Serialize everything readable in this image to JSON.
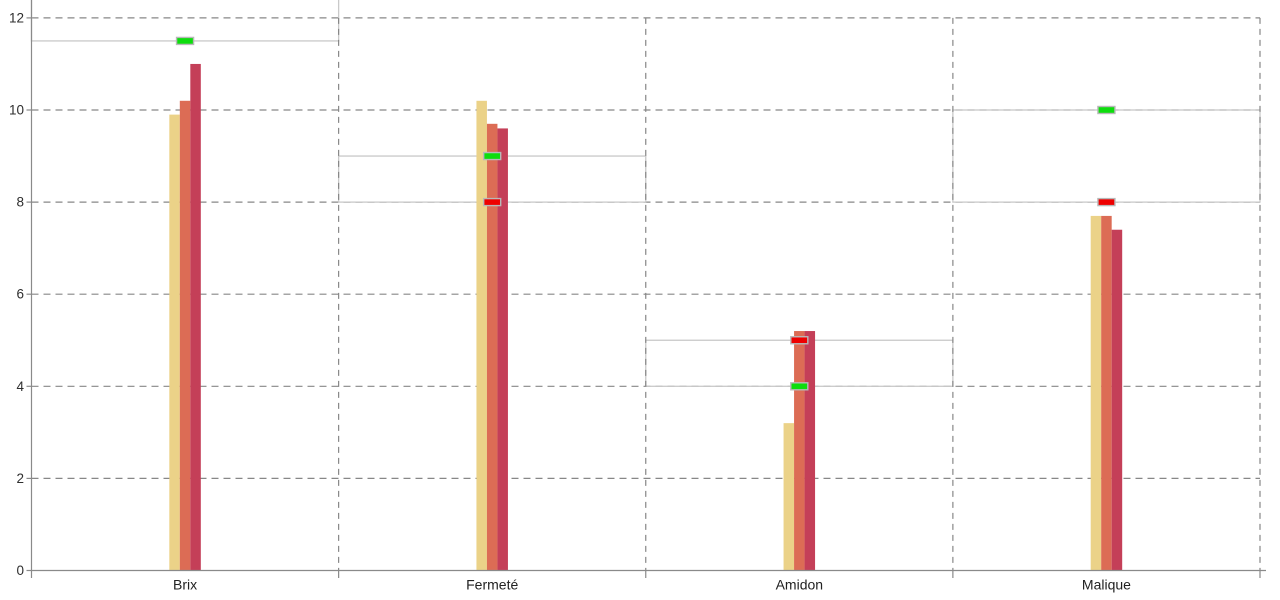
{
  "chart_data": {
    "type": "bar",
    "title": "",
    "categories": [
      "Brix",
      "Fermeté",
      "Amidon",
      "Malique"
    ],
    "series": [
      {
        "name": "series-1-tan",
        "color": "#ebd288",
        "values": [
          9.9,
          10.2,
          3.2,
          7.7
        ]
      },
      {
        "name": "series-2-terracotta",
        "color": "#dc6c55",
        "values": [
          10.2,
          9.7,
          5.2,
          7.7
        ]
      },
      {
        "name": "series-3-crimson",
        "color": "#c43f58",
        "values": [
          11.0,
          9.6,
          5.2,
          7.4
        ]
      }
    ],
    "green_target_markers": [
      11.5,
      9.0,
      4.0,
      10.0
    ],
    "red_target_markers": [
      null,
      8.0,
      5.0,
      8.0
    ],
    "reference_bands": [
      {
        "min": 11.5,
        "max": null
      },
      {
        "min": 8.0,
        "max": 9.0
      },
      {
        "min": 4.0,
        "max": 5.0
      },
      {
        "min": 8.0,
        "max": 10.0
      }
    ],
    "y_axis": {
      "min": 0,
      "max": 12.35,
      "ticks": [
        0,
        2,
        4,
        6,
        8,
        10,
        12
      ]
    },
    "grid": true,
    "legend": false,
    "colors": {
      "green_marker": "#0ddd0d",
      "red_marker": "#ee0000",
      "marker_border": "#b8b8b8",
      "band_border": "#c9c9c9",
      "gridline": "#878787",
      "axis": "#8a8a8a",
      "tick_label": "#2e2e2e",
      "category_label": "#222222"
    }
  }
}
